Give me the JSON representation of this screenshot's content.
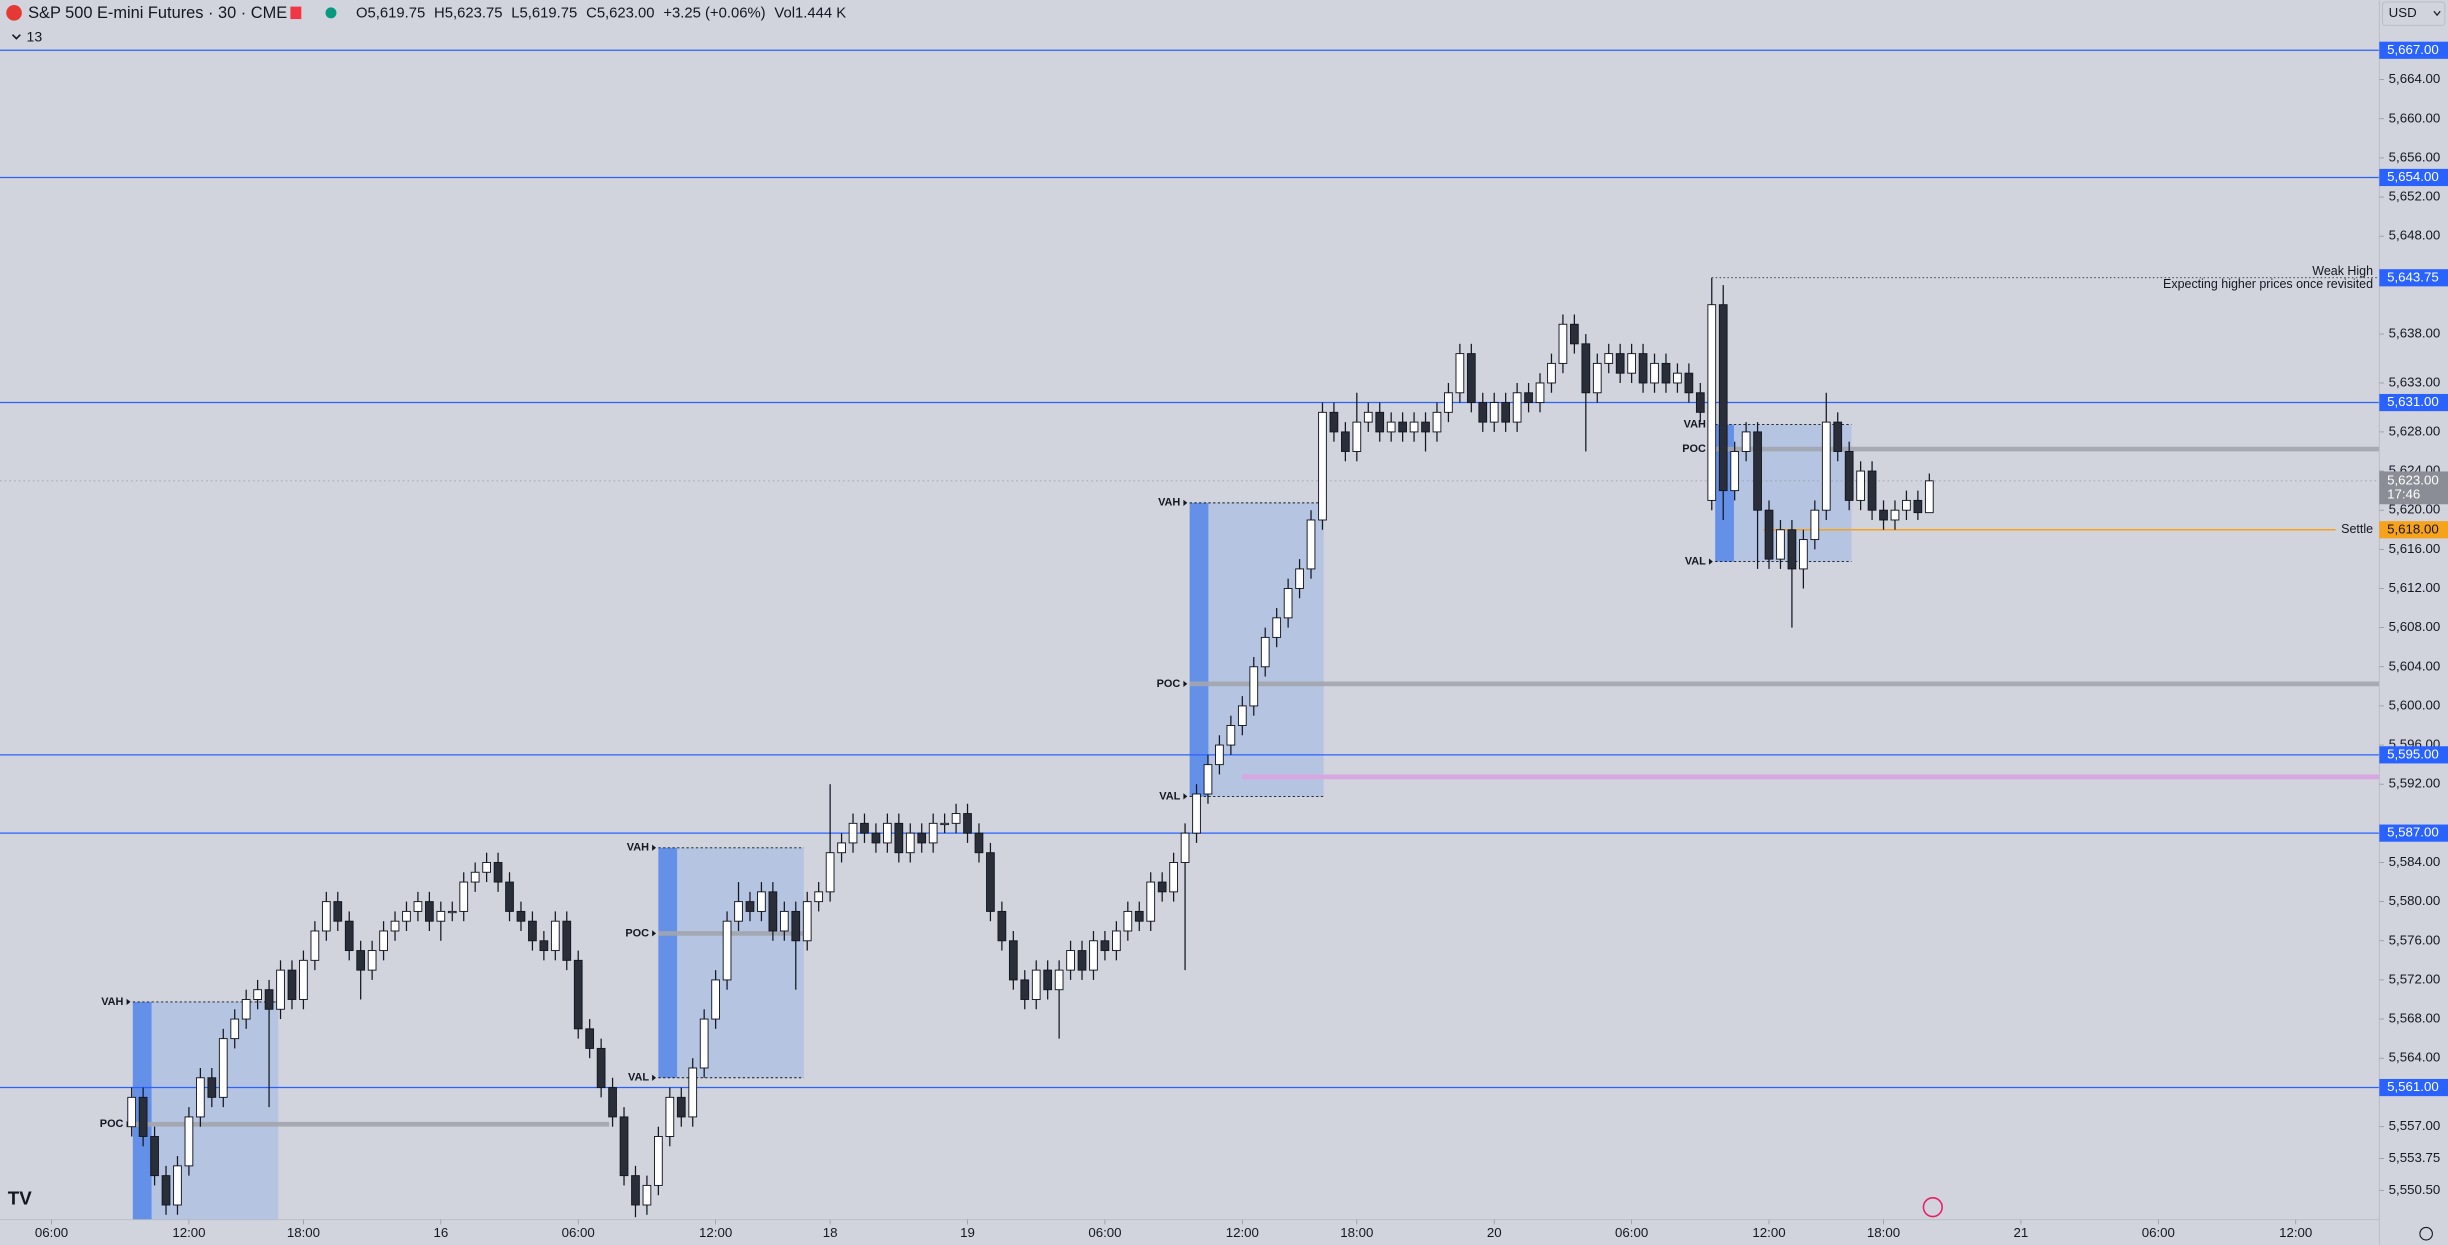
{
  "header": {
    "symbol": "S&P 500 E-mini Futures · 30 · CME",
    "ohlc": [
      {
        "label": "O",
        "value": "5,619.75"
      },
      {
        "label": "H",
        "value": "5,623.75"
      },
      {
        "label": "L",
        "value": "5,619.75"
      },
      {
        "label": "C",
        "value": "5,623.00"
      }
    ],
    "change": "+3.25 (+0.06%)",
    "volume_label": "Vol",
    "volume": "1.444 K",
    "indicators": "13",
    "currency": "USD"
  },
  "chart_data": {
    "type": "candlestick",
    "x": [
      7,
      8,
      9,
      10,
      11,
      12,
      13,
      14,
      15,
      16,
      17,
      18,
      19,
      20,
      21,
      22,
      23,
      24,
      25,
      26,
      27,
      28,
      29,
      30,
      31,
      32,
      33,
      34,
      35,
      36,
      37,
      38,
      39,
      40,
      41,
      42,
      43,
      44,
      45,
      46,
      47,
      48,
      49,
      50,
      51,
      52,
      53,
      54,
      55,
      56,
      57,
      58,
      59,
      60,
      61,
      62,
      63,
      64,
      65,
      66,
      67,
      68,
      69,
      70,
      71,
      72,
      73,
      74,
      75,
      76,
      77,
      78,
      79,
      80,
      81,
      82,
      83,
      84,
      85,
      86,
      87,
      88,
      89,
      90,
      91,
      92,
      93,
      94,
      95,
      96,
      97,
      98,
      99,
      100,
      101,
      102,
      103,
      104,
      105,
      106,
      107,
      108,
      109,
      110,
      111,
      112,
      113,
      114,
      115,
      116,
      117,
      118,
      119,
      120,
      121,
      122,
      123,
      124,
      125,
      126,
      127,
      128,
      129,
      130,
      131,
      132,
      133,
      134,
      135,
      136,
      137,
      138,
      139,
      140,
      141,
      142,
      143,
      144,
      145,
      146,
      147,
      148,
      149,
      150,
      151,
      152,
      153,
      154,
      155,
      156,
      157,
      158,
      159,
      160,
      161,
      162,
      163,
      164
    ],
    "candles": [
      [
        5557,
        5561,
        5556,
        5560
      ],
      [
        5560,
        5561,
        5555,
        5556
      ],
      [
        5556,
        5557,
        5551,
        5552
      ],
      [
        5552,
        5553,
        5548,
        5549
      ],
      [
        5549,
        5554,
        5548,
        5553
      ],
      [
        5553,
        5559,
        5552,
        5558
      ],
      [
        5558,
        5563,
        5557,
        5562
      ],
      [
        5562,
        5563,
        5559,
        5560
      ],
      [
        5560,
        5567,
        5559,
        5566
      ],
      [
        5566,
        5569,
        5565,
        5568
      ],
      [
        5568,
        5571,
        5567,
        5570
      ],
      [
        5570,
        5572,
        5569,
        5571
      ],
      [
        5571,
        5572,
        5559,
        5569
      ],
      [
        5569,
        5574,
        5568,
        5573
      ],
      [
        5573,
        5574,
        5569,
        5570
      ],
      [
        5570,
        5575,
        5569,
        5574
      ],
      [
        5574,
        5578,
        5573,
        5577
      ],
      [
        5577,
        5581,
        5576,
        5580
      ],
      [
        5580,
        5581,
        5577,
        5578
      ],
      [
        5578,
        5579,
        5574,
        5575
      ],
      [
        5575,
        5576,
        5570,
        5573
      ],
      [
        5573,
        5576,
        5572,
        5575
      ],
      [
        5575,
        5578,
        5574,
        5577
      ],
      [
        5577,
        5579,
        5576,
        5578
      ],
      [
        5578,
        5580,
        5577,
        5579
      ],
      [
        5579,
        5581,
        5578,
        5580
      ],
      [
        5580,
        5581,
        5577,
        5578
      ],
      [
        5578,
        5580,
        5576,
        5579
      ],
      [
        5579,
        5580,
        5578,
        5579
      ],
      [
        5579,
        5583,
        5578,
        5582
      ],
      [
        5582,
        5584,
        5581,
        5583
      ],
      [
        5583,
        5585,
        5582,
        5584
      ],
      [
        5584,
        5585,
        5581,
        5582
      ],
      [
        5582,
        5583,
        5578,
        5579
      ],
      [
        5579,
        5580,
        5577,
        5578
      ],
      [
        5578,
        5579,
        5575,
        5576
      ],
      [
        5576,
        5577,
        5574,
        5575
      ],
      [
        5575,
        5579,
        5574,
        5578
      ],
      [
        5578,
        5579,
        5573,
        5574
      ],
      [
        5574,
        5575,
        5566,
        5567
      ],
      [
        5567,
        5568,
        5564,
        5565
      ],
      [
        5565,
        5566,
        5560,
        5561
      ],
      [
        5561,
        5562,
        5557,
        5558
      ],
      [
        5558,
        5559,
        5551,
        5552
      ],
      [
        5552,
        5553,
        5547.75,
        5549
      ],
      [
        5549,
        5552,
        5548,
        5551
      ],
      [
        5551,
        5557,
        5550,
        5556
      ],
      [
        5556,
        5561,
        5555,
        5560
      ],
      [
        5560,
        5561,
        5557,
        5558
      ],
      [
        5558,
        5564,
        5557,
        5563
      ],
      [
        5563,
        5569,
        5562,
        5568
      ],
      [
        5568,
        5573,
        5567,
        5572
      ],
      [
        5572,
        5579,
        5571,
        5578
      ],
      [
        5578,
        5582,
        5577,
        5580
      ],
      [
        5580,
        5581,
        5578,
        5579
      ],
      [
        5579,
        5582,
        5578,
        5581
      ],
      [
        5581,
        5582,
        5576,
        5577
      ],
      [
        5577,
        5580,
        5576,
        5579
      ],
      [
        5579,
        5580,
        5571,
        5576
      ],
      [
        5576,
        5581,
        5575,
        5580
      ],
      [
        5580,
        5582,
        5579,
        5581
      ],
      [
        5581,
        5592,
        5580,
        5585
      ],
      [
        5585,
        5587,
        5584,
        5586
      ],
      [
        5586,
        5589,
        5585,
        5588
      ],
      [
        5588,
        5589,
        5586,
        5587
      ],
      [
        5587,
        5588,
        5585,
        5586
      ],
      [
        5586,
        5589,
        5585,
        5588
      ],
      [
        5588,
        5589,
        5584,
        5585
      ],
      [
        5585,
        5588,
        5584,
        5587
      ],
      [
        5587,
        5588,
        5585,
        5586
      ],
      [
        5586,
        5589,
        5585,
        5588
      ],
      [
        5588,
        5589,
        5587,
        5588
      ],
      [
        5588,
        5590,
        5587,
        5589
      ],
      [
        5589,
        5590,
        5586,
        5587
      ],
      [
        5587,
        5588,
        5584,
        5585
      ],
      [
        5585,
        5586,
        5578,
        5579
      ],
      [
        5579,
        5580,
        5575,
        5576
      ],
      [
        5576,
        5577,
        5571,
        5572
      ],
      [
        5572,
        5573,
        5569,
        5570
      ],
      [
        5570,
        5574,
        5569,
        5573
      ],
      [
        5573,
        5574,
        5570,
        5571
      ],
      [
        5571,
        5574,
        5566,
        5573
      ],
      [
        5573,
        5576,
        5572,
        5575
      ],
      [
        5575,
        5576,
        5572,
        5573
      ],
      [
        5573,
        5577,
        5572,
        5576
      ],
      [
        5576,
        5577,
        5574,
        5575
      ],
      [
        5575,
        5578,
        5574,
        5577
      ],
      [
        5577,
        5580,
        5576,
        5579
      ],
      [
        5579,
        5580,
        5577,
        5578
      ],
      [
        5578,
        5583,
        5577,
        5582
      ],
      [
        5582,
        5583,
        5580,
        5581
      ],
      [
        5581,
        5585,
        5580,
        5584
      ],
      [
        5584,
        5588,
        5573,
        5587
      ],
      [
        5587,
        5592,
        5586,
        5591
      ],
      [
        5591,
        5595,
        5590,
        5594
      ],
      [
        5594,
        5597,
        5593,
        5596
      ],
      [
        5596,
        5599,
        5595,
        5598
      ],
      [
        5598,
        5601,
        5597,
        5600
      ],
      [
        5600,
        5605,
        5599,
        5604
      ],
      [
        5604,
        5608,
        5603,
        5607
      ],
      [
        5607,
        5610,
        5606,
        5609
      ],
      [
        5609,
        5613,
        5608,
        5612
      ],
      [
        5612,
        5615,
        5611,
        5614
      ],
      [
        5614,
        5620,
        5613,
        5619
      ],
      [
        5619,
        5631,
        5618,
        5630
      ],
      [
        5630,
        5631,
        5627,
        5628
      ],
      [
        5628,
        5629,
        5625,
        5626
      ],
      [
        5626,
        5632,
        5625,
        5629
      ],
      [
        5629,
        5631,
        5628,
        5630
      ],
      [
        5630,
        5631,
        5627,
        5628
      ],
      [
        5628,
        5630,
        5627,
        5629
      ],
      [
        5629,
        5630,
        5627,
        5628
      ],
      [
        5628,
        5630,
        5627,
        5629
      ],
      [
        5629,
        5630,
        5626,
        5628
      ],
      [
        5628,
        5631,
        5627,
        5630
      ],
      [
        5630,
        5633,
        5629,
        5632
      ],
      [
        5632,
        5637,
        5631,
        5636
      ],
      [
        5636,
        5637,
        5630,
        5631
      ],
      [
        5631,
        5632,
        5628,
        5629
      ],
      [
        5629,
        5632,
        5628,
        5631
      ],
      [
        5631,
        5632,
        5628,
        5629
      ],
      [
        5629,
        5633,
        5628,
        5632
      ],
      [
        5632,
        5633,
        5630,
        5631
      ],
      [
        5631,
        5634,
        5630,
        5633
      ],
      [
        5633,
        5636,
        5632,
        5635
      ],
      [
        5635,
        5640,
        5634,
        5639
      ],
      [
        5639,
        5640,
        5636,
        5637
      ],
      [
        5637,
        5638,
        5626,
        5632
      ],
      [
        5632,
        5636,
        5631,
        5635
      ],
      [
        5635,
        5637,
        5634,
        5636
      ],
      [
        5636,
        5637,
        5633,
        5634
      ],
      [
        5634,
        5637,
        5633,
        5636
      ],
      [
        5636,
        5637,
        5632,
        5633
      ],
      [
        5633,
        5636,
        5632,
        5635
      ],
      [
        5635,
        5636,
        5632,
        5633
      ],
      [
        5633,
        5635,
        5632,
        5634
      ],
      [
        5634,
        5635,
        5631,
        5632
      ],
      [
        5632,
        5633,
        5629,
        5630
      ],
      [
        5621,
        5643.75,
        5620,
        5641
      ],
      [
        5641,
        5643,
        5619,
        5622
      ],
      [
        5622,
        5627,
        5621,
        5626
      ],
      [
        5626,
        5629,
        5625,
        5628
      ],
      [
        5628,
        5629,
        5614,
        5620
      ],
      [
        5620,
        5621,
        5614,
        5615
      ],
      [
        5615,
        5619,
        5614,
        5618
      ],
      [
        5618,
        5619,
        5608,
        5614
      ],
      [
        5614,
        5618,
        5612,
        5617
      ],
      [
        5617,
        5621,
        5616,
        5620
      ],
      [
        5620,
        5632,
        5619,
        5629
      ],
      [
        5629,
        5630,
        5625,
        5626
      ],
      [
        5626,
        5627,
        5620,
        5621
      ],
      [
        5621,
        5625,
        5620,
        5624
      ],
      [
        5624,
        5625,
        5619,
        5620
      ],
      [
        5620,
        5621,
        5618,
        5619
      ],
      [
        5619,
        5621,
        5618,
        5620
      ],
      [
        5620,
        5622,
        5619,
        5621
      ],
      [
        5621,
        5622,
        5619,
        5619.75
      ],
      [
        5619.75,
        5623.75,
        5619.75,
        5623
      ]
    ],
    "up_color": "#ffffff",
    "down_color": "#2a2e39",
    "xlim": [
      -4.5,
      203.3
    ],
    "xticks": [
      {
        "value": 0,
        "label": "06:00"
      },
      {
        "value": 12,
        "label": "12:00"
      },
      {
        "value": 22,
        "label": "18:00"
      },
      {
        "value": 34,
        "label": "16"
      },
      {
        "value": 46,
        "label": "06:00"
      },
      {
        "value": 58,
        "label": "12:00"
      },
      {
        "value": 68,
        "label": "18"
      },
      {
        "value": 80,
        "label": "19"
      },
      {
        "value": 92,
        "label": "06:00"
      },
      {
        "value": 104,
        "label": "12:00"
      },
      {
        "value": 114,
        "label": "18:00"
      },
      {
        "value": 126,
        "label": "20"
      },
      {
        "value": 138,
        "label": "06:00"
      },
      {
        "value": 150,
        "label": "12:00"
      },
      {
        "value": 160,
        "label": "18:00"
      },
      {
        "value": 172,
        "label": "21"
      },
      {
        "value": 184,
        "label": "06:00"
      },
      {
        "value": 196,
        "label": "12:00"
      }
    ],
    "ylim": [
      5547.5,
      5672.1
    ],
    "yticks": [
      {
        "value": 5664,
        "label": "5,664.00"
      },
      {
        "value": 5660,
        "label": "5,660.00"
      },
      {
        "value": 5656,
        "label": "5,656.00"
      },
      {
        "value": 5652,
        "label": "5,652.00"
      },
      {
        "value": 5648,
        "label": "5,648.00"
      },
      {
        "value": 5638,
        "label": "5,638.00"
      },
      {
        "value": 5633,
        "label": "5,633.00"
      },
      {
        "value": 5628,
        "label": "5,628.00"
      },
      {
        "value": 5624,
        "label": "5,624.00"
      },
      {
        "value": 5620,
        "label": "5,620.00"
      },
      {
        "value": 5616,
        "label": "5,616.00"
      },
      {
        "value": 5612,
        "label": "5,612.00"
      },
      {
        "value": 5608,
        "label": "5,608.00"
      },
      {
        "value": 5604,
        "label": "5,604.00"
      },
      {
        "value": 5600,
        "label": "5,600.00"
      },
      {
        "value": 5596,
        "label": "5,596.00"
      },
      {
        "value": 5592,
        "label": "5,592.00"
      },
      {
        "value": 5584,
        "label": "5,584.00"
      },
      {
        "value": 5580,
        "label": "5,580.00"
      },
      {
        "value": 5576,
        "label": "5,576.00"
      },
      {
        "value": 5572,
        "label": "5,572.00"
      },
      {
        "value": 5568,
        "label": "5,568.00"
      },
      {
        "value": 5564,
        "label": "5,564.00"
      },
      {
        "value": 5557,
        "label": "5,557.00"
      },
      {
        "value": 5553.75,
        "label": "5,553.75"
      },
      {
        "value": 5550.5,
        "label": "5,550.50"
      }
    ],
    "levels": [
      {
        "value": 5667,
        "label": "5,667.00"
      },
      {
        "value": 5654,
        "label": "5,654.00"
      },
      {
        "value": 5631,
        "label": "5,631.00"
      },
      {
        "value": 5595,
        "label": "5,595.00"
      },
      {
        "value": 5587,
        "label": "5,587.00"
      },
      {
        "value": 5561,
        "label": "5,561.00"
      }
    ],
    "level_color": "#2962ff",
    "weak_high": {
      "value": 5643.75,
      "label": "5,643.75",
      "from": 145,
      "title": "Weak High",
      "note": "Expecting higher prices once revisited"
    },
    "settle": {
      "value": 5618,
      "label": "5,618.00",
      "from": 149.5,
      "title": "Settle",
      "color": "#f7a21b"
    },
    "last": {
      "value": 5623,
      "label": "5,623.00",
      "countdown": "17:46",
      "color": "#8a8d96"
    },
    "profiles": [
      {
        "from": 7.1,
        "to": 19.8,
        "levels": [
          {
            "name": "VAH",
            "value": 5569.75
          },
          {
            "name": "POC",
            "value": 5557.25
          }
        ],
        "poc_extend_to": 48.7
      },
      {
        "from": 53,
        "to": 65.7,
        "levels": [
          {
            "name": "VAH",
            "value": 5585.5
          },
          {
            "name": "POC",
            "value": 5576.75
          },
          {
            "name": "VAL",
            "value": 5562
          }
        ]
      },
      {
        "from": 99.4,
        "to": 111.1,
        "levels": [
          {
            "name": "VAH",
            "value": 5620.75
          },
          {
            "name": "POC",
            "value": 5602.25
          },
          {
            "name": "VAL",
            "value": 5590.75
          }
        ],
        "poc_extends_right": true
      },
      {
        "from": 145.3,
        "to": 157.2,
        "levels": [
          {
            "name": "VAH",
            "value": 5628.75
          },
          {
            "name": "POC",
            "value": 5626.25
          },
          {
            "name": "VAL",
            "value": 5614.75
          }
        ],
        "poc_extends_right": true
      }
    ],
    "naked_level": {
      "value": 5592.75,
      "from": 104,
      "color": "#d8a6e0"
    }
  }
}
